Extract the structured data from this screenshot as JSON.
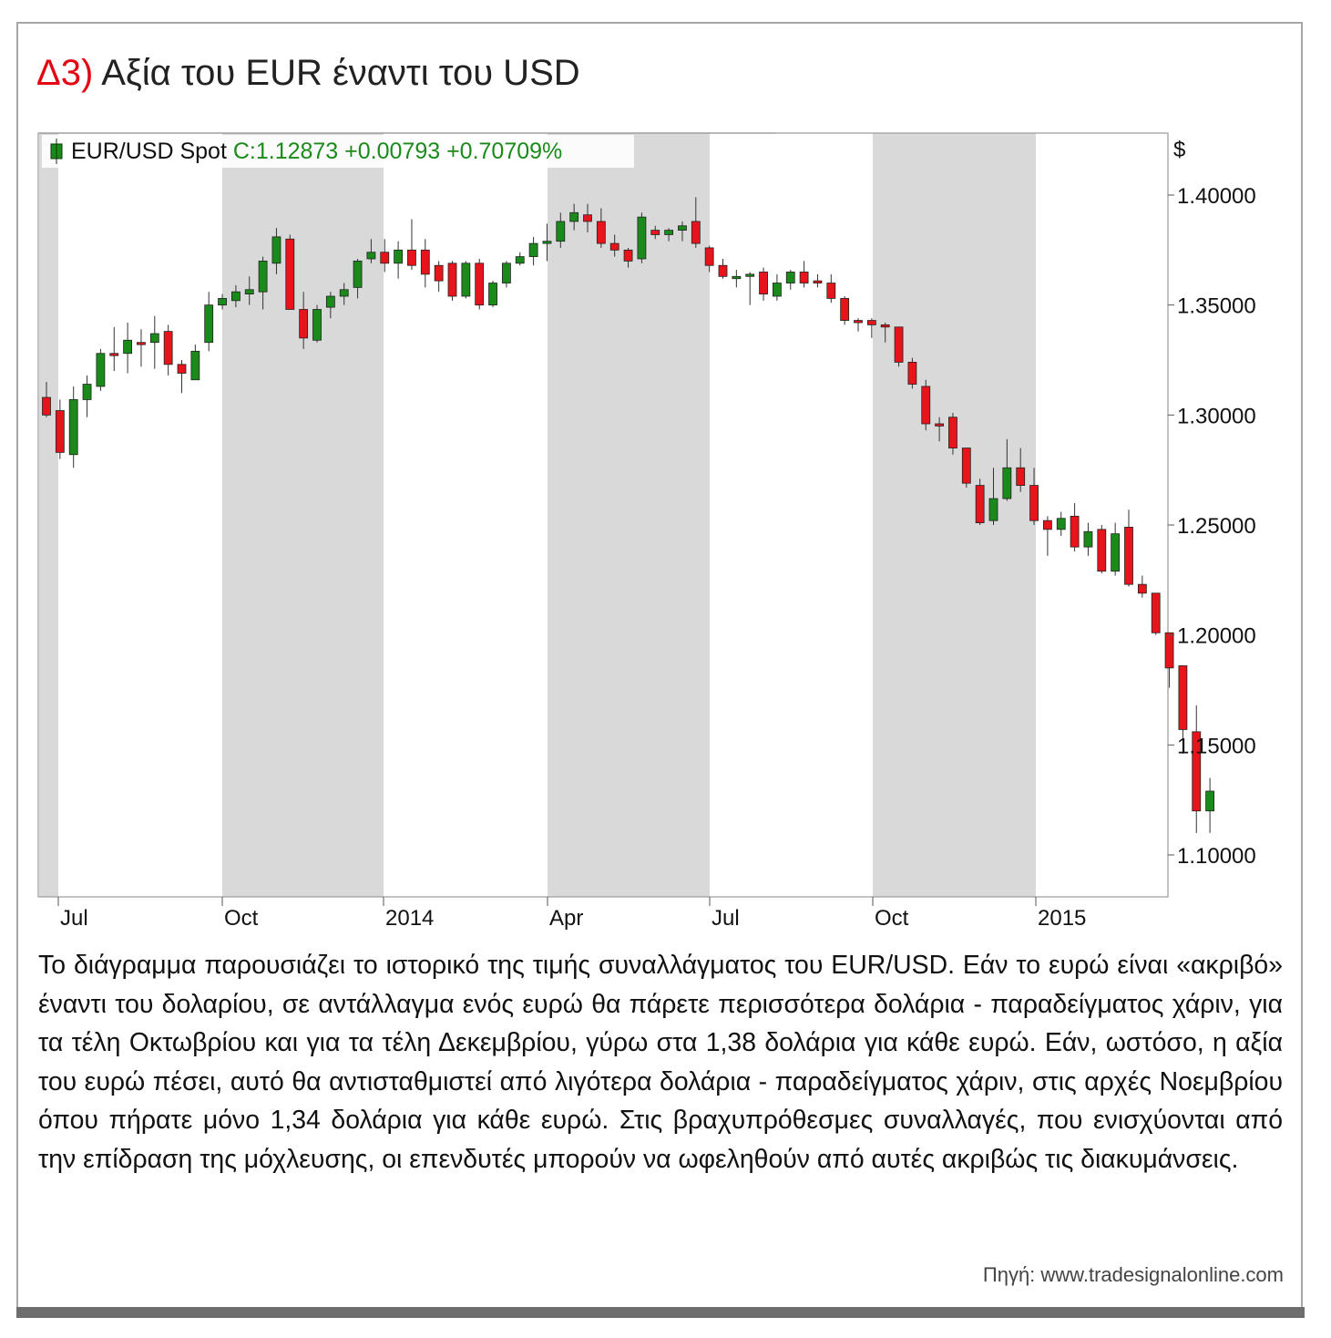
{
  "header": {
    "number": "Δ3)",
    "title": "Αξία του EUR έναντι του USD"
  },
  "legend": {
    "symbol": "EUR/USD Spot",
    "quote": "C:1.12873 +0.00793 +0.70709%",
    "colors": {
      "up": "#1a8a1a",
      "down": "#e8141b",
      "quote_text": "#1a8a1a"
    }
  },
  "chart_data": {
    "type": "candlestick",
    "y_unit": "$",
    "ylim": [
      1.08,
      1.42
    ],
    "y_ticks": [
      "1.40000",
      "1.35000",
      "1.30000",
      "1.25000",
      "1.20000",
      "1.15000",
      "1.10000"
    ],
    "y_tick_values": [
      1.4,
      1.35,
      1.3,
      1.25,
      1.2,
      1.15,
      1.1
    ],
    "x_ticks": [
      "Jul",
      "Oct",
      "2014",
      "Apr",
      "Jul",
      "Oct",
      "2015"
    ],
    "period": "weekly",
    "shaded_bands": "alternating quarters (Jul–Sep, Jan–Mar, Jul–Sep)",
    "candles": [
      [
        1.308,
        1.315,
        1.299,
        1.3
      ],
      [
        1.302,
        1.307,
        1.28,
        1.283
      ],
      [
        1.282,
        1.313,
        1.276,
        1.307
      ],
      [
        1.307,
        1.318,
        1.299,
        1.314
      ],
      [
        1.313,
        1.33,
        1.311,
        1.328
      ],
      [
        1.328,
        1.34,
        1.32,
        1.327
      ],
      [
        1.328,
        1.342,
        1.319,
        1.334
      ],
      [
        1.333,
        1.339,
        1.322,
        1.332
      ],
      [
        1.333,
        1.345,
        1.321,
        1.337
      ],
      [
        1.338,
        1.341,
        1.318,
        1.323
      ],
      [
        1.323,
        1.325,
        1.31,
        1.319
      ],
      [
        1.316,
        1.332,
        1.316,
        1.329
      ],
      [
        1.333,
        1.356,
        1.329,
        1.35
      ],
      [
        1.35,
        1.355,
        1.348,
        1.353
      ],
      [
        1.352,
        1.359,
        1.349,
        1.356
      ],
      [
        1.355,
        1.363,
        1.35,
        1.357
      ],
      [
        1.356,
        1.372,
        1.348,
        1.37
      ],
      [
        1.369,
        1.385,
        1.364,
        1.381
      ],
      [
        1.38,
        1.382,
        1.348,
        1.348
      ],
      [
        1.348,
        1.356,
        1.33,
        1.335
      ],
      [
        1.334,
        1.35,
        1.333,
        1.348
      ],
      [
        1.349,
        1.356,
        1.344,
        1.354
      ],
      [
        1.354,
        1.36,
        1.35,
        1.357
      ],
      [
        1.358,
        1.371,
        1.353,
        1.37
      ],
      [
        1.371,
        1.38,
        1.369,
        1.374
      ],
      [
        1.374,
        1.38,
        1.365,
        1.369
      ],
      [
        1.369,
        1.379,
        1.362,
        1.375
      ],
      [
        1.375,
        1.389,
        1.366,
        1.368
      ],
      [
        1.375,
        1.38,
        1.358,
        1.364
      ],
      [
        1.368,
        1.37,
        1.356,
        1.361
      ],
      [
        1.369,
        1.37,
        1.352,
        1.354
      ],
      [
        1.354,
        1.37,
        1.353,
        1.369
      ],
      [
        1.369,
        1.371,
        1.348,
        1.35
      ],
      [
        1.35,
        1.361,
        1.349,
        1.36
      ],
      [
        1.36,
        1.37,
        1.358,
        1.369
      ],
      [
        1.369,
        1.374,
        1.368,
        1.372
      ],
      [
        1.372,
        1.381,
        1.368,
        1.378
      ],
      [
        1.378,
        1.387,
        1.37,
        1.379
      ],
      [
        1.379,
        1.392,
        1.376,
        1.388
      ],
      [
        1.388,
        1.396,
        1.384,
        1.392
      ],
      [
        1.391,
        1.396,
        1.383,
        1.388
      ],
      [
        1.388,
        1.394,
        1.376,
        1.378
      ],
      [
        1.378,
        1.382,
        1.372,
        1.375
      ],
      [
        1.375,
        1.376,
        1.367,
        1.37
      ],
      [
        1.371,
        1.392,
        1.369,
        1.39
      ],
      [
        1.384,
        1.386,
        1.38,
        1.382
      ],
      [
        1.382,
        1.385,
        1.379,
        1.384
      ],
      [
        1.384,
        1.388,
        1.379,
        1.386
      ],
      [
        1.388,
        1.399,
        1.376,
        1.378
      ],
      [
        1.376,
        1.377,
        1.365,
        1.368
      ],
      [
        1.368,
        1.371,
        1.362,
        1.363
      ],
      [
        1.362,
        1.366,
        1.358,
        1.363
      ],
      [
        1.363,
        1.365,
        1.35,
        1.364
      ],
      [
        1.365,
        1.367,
        1.352,
        1.355
      ],
      [
        1.354,
        1.364,
        1.352,
        1.36
      ],
      [
        1.36,
        1.366,
        1.357,
        1.365
      ],
      [
        1.365,
        1.37,
        1.358,
        1.36
      ],
      [
        1.361,
        1.364,
        1.358,
        1.36
      ],
      [
        1.36,
        1.364,
        1.351,
        1.353
      ],
      [
        1.353,
        1.354,
        1.341,
        1.343
      ],
      [
        1.343,
        1.344,
        1.338,
        1.342
      ],
      [
        1.343,
        1.344,
        1.335,
        1.341
      ],
      [
        1.341,
        1.342,
        1.333,
        1.34
      ],
      [
        1.34,
        1.34,
        1.322,
        1.324
      ],
      [
        1.324,
        1.326,
        1.312,
        1.314
      ],
      [
        1.313,
        1.316,
        1.293,
        1.296
      ],
      [
        1.296,
        1.299,
        1.288,
        1.295
      ],
      [
        1.299,
        1.301,
        1.282,
        1.285
      ],
      [
        1.285,
        1.285,
        1.267,
        1.269
      ],
      [
        1.268,
        1.271,
        1.25,
        1.251
      ],
      [
        1.252,
        1.276,
        1.25,
        1.262
      ],
      [
        1.262,
        1.289,
        1.261,
        1.276
      ],
      [
        1.276,
        1.285,
        1.265,
        1.268
      ],
      [
        1.268,
        1.276,
        1.25,
        1.252
      ],
      [
        1.252,
        1.254,
        1.236,
        1.248
      ],
      [
        1.248,
        1.256,
        1.245,
        1.253
      ],
      [
        1.254,
        1.26,
        1.238,
        1.24
      ],
      [
        1.24,
        1.251,
        1.236,
        1.247
      ],
      [
        1.248,
        1.25,
        1.228,
        1.229
      ],
      [
        1.229,
        1.251,
        1.227,
        1.246
      ],
      [
        1.249,
        1.257,
        1.222,
        1.223
      ],
      [
        1.223,
        1.227,
        1.217,
        1.219
      ],
      [
        1.219,
        1.219,
        1.2,
        1.201
      ],
      [
        1.201,
        1.201,
        1.176,
        1.185
      ],
      [
        1.186,
        1.186,
        1.146,
        1.157
      ],
      [
        1.156,
        1.168,
        1.11,
        1.12
      ],
      [
        1.12,
        1.135,
        1.11,
        1.129
      ]
    ]
  },
  "body_text": "Το διάγραμμα παρουσιάζει το ιστορικό της τιμής συναλλάγματος του EUR/USD. Εάν το ευρώ είναι «ακριβό» έναντι του δολαρίου, σε αντάλλαγμα ενός ευρώ θα πάρετε περισσότερα δολάρια - παραδείγματος χάριν, για τα τέλη Οκτωβρίου και για τα τέλη Δεκεμβρίου, γύρω στα 1,38 δολάρια για κάθε ευρώ. Εάν, ωστόσο, η αξία του ευρώ πέσει, αυτό θα αντισταθμιστεί από λιγότερα δολάρια - παραδείγματος χάριν, στις αρχές Νοεμβρίου όπου πήρατε μόνο 1,34 δολάρια για κάθε ευρώ. Στις βραχυπρόθεσμες συναλλαγές, που ενισχύονται από την επίδραση της μόχλευσης, οι επενδυτές μπορούν να ωφεληθούν από αυτές ακριβώς τις διακυμάνσεις.",
  "source": "Πηγή: www.tradesignalonline.com"
}
